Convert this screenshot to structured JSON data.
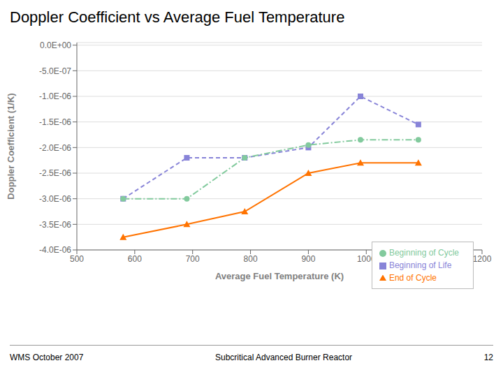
{
  "chart_data": {
    "type": "line",
    "title": "Doppler Coefficient vs Average Fuel Temperature",
    "x_label": "Average Fuel Temperature (K)",
    "y_label": "Doppler Coefficient (1/K)",
    "annotations": [
      "WMS October 2007",
      "Subcritical Advanced Burner Reactor",
      "12"
    ],
    "x": [
      580,
      690,
      790,
      900,
      990,
      1090
    ],
    "xlim": [
      500,
      1200
    ],
    "xticks": [
      500,
      600,
      700,
      800,
      900,
      1000,
      1100,
      1200
    ],
    "ylim": [
      -4e-06,
      5e-08
    ],
    "yticks": [
      {
        "value": 0.0,
        "label": "0.0E+00"
      },
      {
        "value": -5e-07,
        "label": "-5.0E-07"
      },
      {
        "value": -1e-06,
        "label": "-1.0E-06"
      },
      {
        "value": -1.5e-06,
        "label": "-1.5E-06"
      },
      {
        "value": -2e-06,
        "label": "-2.0E-06"
      },
      {
        "value": -2.5e-06,
        "label": "-2.5E-06"
      },
      {
        "value": -3e-06,
        "label": "-3.0E-06"
      },
      {
        "value": -3.5e-06,
        "label": "-3.5E-06"
      },
      {
        "value": -4e-06,
        "label": "-4.0E-06"
      }
    ],
    "grid": true,
    "legend": "lower right",
    "series": [
      {
        "name": "Beginning of Life",
        "marker": "square",
        "line_style": "dashed",
        "values": [
          -3e-06,
          -2.2e-06,
          -2.2e-06,
          -2e-06,
          -1e-06,
          -1.55e-06
        ]
      },
      {
        "name": "Beginning of Cycle",
        "marker": "circle",
        "line_style": "dashdot",
        "values": [
          -3e-06,
          -3e-06,
          -2.2e-06,
          -1.95e-06,
          -1.85e-06,
          -1.85e-06
        ]
      },
      {
        "name": "End of Cycle",
        "marker": "triangle",
        "line_style": "solid",
        "values": [
          -3.75e-06,
          -3.5e-06,
          -3.25e-06,
          -2.5e-06,
          -2.3e-06,
          -2.3e-06
        ]
      }
    ]
  }
}
